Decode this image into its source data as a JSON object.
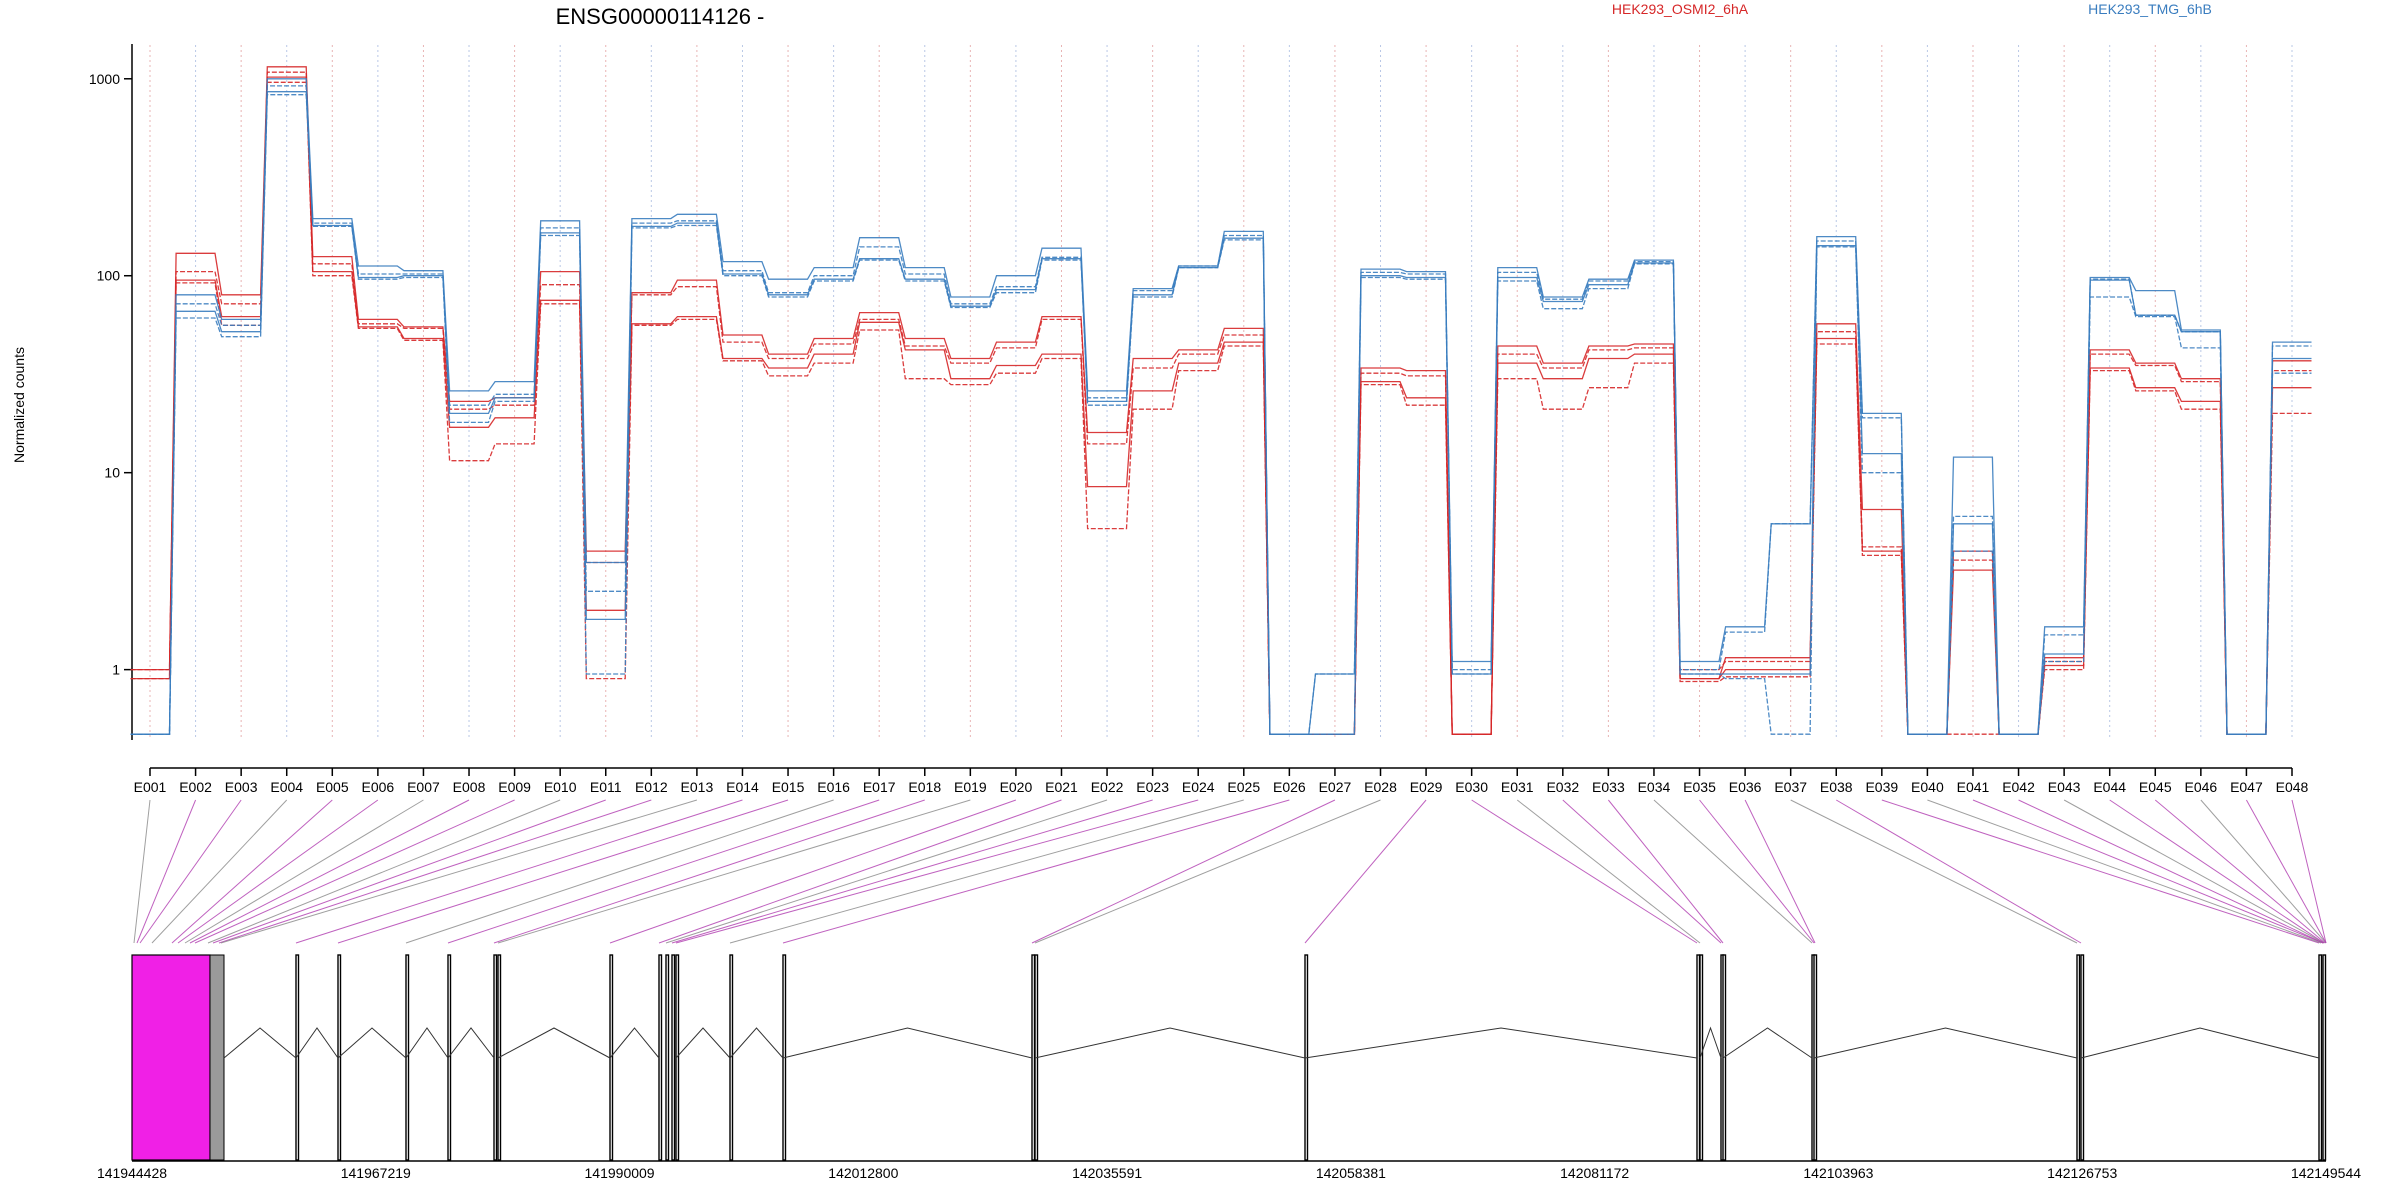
{
  "chart_data": {
    "type": "line",
    "title": "ENSG00000114126 -",
    "ylabel": "Normalized counts",
    "xlabel": "",
    "yscale": "log",
    "ylim": [
      0.4,
      1400
    ],
    "yticks": [
      1,
      10,
      100,
      1000
    ],
    "ytick_labels": [
      "1",
      "10",
      "100",
      "1000"
    ],
    "grid": "vertical dotted lines at each exon",
    "legend": [
      {
        "name": "HEK293_OSMI2_6hA",
        "color": "#d62728"
      },
      {
        "name": "HEK293_TMG_6hB",
        "color": "#3a7dbf"
      }
    ],
    "categories": [
      "E001",
      "E002",
      "E003",
      "E004",
      "E005",
      "E006",
      "E007",
      "E008",
      "E009",
      "E010",
      "E011",
      "E012",
      "E013",
      "E014",
      "E015",
      "E016",
      "E017",
      "E018",
      "E019",
      "E020",
      "E021",
      "E022",
      "E023",
      "E024",
      "E025",
      "E026",
      "E027",
      "E028",
      "E029",
      "E030",
      "E031",
      "E032",
      "E033",
      "E034",
      "E035",
      "E036",
      "E037",
      "E038",
      "E039",
      "E040",
      "E041",
      "E042",
      "E043",
      "E044",
      "E045",
      "E046",
      "E047",
      "E048"
    ],
    "series": [
      {
        "group": "HEK293_OSMI2_6hA",
        "color": "#d62728",
        "values": [
          1.0,
          130,
          80,
          1150,
          125,
          60,
          55,
          23,
          24,
          105,
          4,
          82,
          95,
          50,
          40,
          48,
          65,
          48,
          38,
          46,
          62,
          16,
          38,
          42,
          54,
          0.47,
          0.47,
          34,
          33,
          0.47,
          44,
          36,
          44,
          45,
          0.9,
          1.15,
          1.15,
          57,
          6.5,
          0.47,
          4,
          0.47,
          1.15,
          42,
          36,
          30,
          0.47,
          37
        ]
      },
      {
        "group": "HEK293_OSMI2_6hA",
        "color": "#d62728",
        "values": [
          1.0,
          105,
          72,
          1080,
          115,
          57,
          54,
          21,
          22,
          90,
          3.5,
          80,
          88,
          46,
          38,
          45,
          60,
          44,
          36,
          43,
          60,
          14,
          34,
          40,
          50,
          0.47,
          0.47,
          32,
          31,
          0.47,
          40,
          34,
          42,
          43,
          1.0,
          1.1,
          1.1,
          52,
          4.2,
          0.47,
          3.6,
          0.47,
          1.1,
          40,
          35,
          29,
          0.47,
          33
        ]
      },
      {
        "group": "HEK293_OSMI2_6hA",
        "color": "#d62728",
        "values": [
          0.9,
          95,
          62,
          1020,
          105,
          55,
          48,
          17,
          19,
          75,
          2.0,
          57,
          62,
          38,
          34,
          40,
          58,
          42,
          30,
          35,
          40,
          8.5,
          26,
          36,
          46,
          0.47,
          0.47,
          29,
          24,
          0.47,
          36,
          30,
          38,
          40,
          0.9,
          1.0,
          1.0,
          48,
          4.0,
          0.47,
          3.2,
          0.47,
          1.05,
          34,
          27,
          23,
          0.47,
          27
        ]
      },
      {
        "group": "HEK293_OSMI2_6hA",
        "color": "#d62728",
        "values": [
          0.9,
          92,
          56,
          960,
          100,
          54,
          47,
          11.5,
          14,
          72,
          0.9,
          56,
          60,
          37,
          31,
          36,
          53,
          30,
          28,
          32,
          38,
          5.2,
          21,
          33,
          44,
          0.47,
          0.47,
          28,
          22,
          0.47,
          30,
          21,
          27,
          36,
          0.87,
          0.92,
          0.92,
          45,
          3.8,
          0.47,
          0.47,
          0.47,
          1.0,
          33,
          26,
          21,
          0.47,
          20
        ]
      },
      {
        "group": "HEK293_TMG_6hB",
        "color": "#3a7dbf",
        "values": [
          0.47,
          80,
          60,
          1000,
          195,
          112,
          106,
          26,
          29,
          190,
          3.5,
          195,
          205,
          118,
          96,
          110,
          156,
          110,
          78,
          100,
          138,
          26,
          86,
          112,
          168,
          0.47,
          0.95,
          108,
          105,
          1.1,
          110,
          78,
          96,
          120,
          1.1,
          1.65,
          5.5,
          158,
          20,
          0.47,
          12,
          0.47,
          1.65,
          98,
          84,
          53,
          0.47,
          46
        ]
      },
      {
        "group": "HEK293_TMG_6hB",
        "color": "#3a7dbf",
        "values": [
          0.47,
          72,
          56,
          920,
          185,
          102,
          102,
          22,
          25,
          175,
          2.5,
          185,
          190,
          106,
          82,
          100,
          140,
          102,
          72,
          88,
          124,
          24,
          84,
          112,
          160,
          0.47,
          0.95,
          104,
          102,
          1.0,
          104,
          76,
          94,
          118,
          1.0,
          1.55,
          5.5,
          150,
          19,
          0.47,
          6,
          0.47,
          1.5,
          96,
          63,
          52,
          0.47,
          44
        ]
      },
      {
        "group": "HEK293_TMG_6hB",
        "color": "#3a7dbf",
        "values": [
          0.47,
          66,
          52,
          860,
          180,
          98,
          100,
          20,
          24,
          165,
          1.8,
          178,
          185,
          102,
          80,
          96,
          122,
          96,
          70,
          85,
          122,
          23,
          80,
          110,
          155,
          0.47,
          0.47,
          100,
          98,
          0.95,
          98,
          74,
          90,
          116,
          0.95,
          0.95,
          0.95,
          142,
          12.5,
          0.47,
          5.5,
          0.47,
          1.2,
          95,
          63,
          52,
          0.47,
          38
        ]
      },
      {
        "group": "HEK293_TMG_6hB",
        "color": "#3a7dbf",
        "values": [
          0.47,
          61,
          49,
          830,
          178,
          96,
          98,
          18,
          23,
          160,
          0.95,
          175,
          180,
          100,
          78,
          94,
          120,
          94,
          69,
          82,
          120,
          22,
          78,
          110,
          152,
          0.47,
          0.47,
          98,
          96,
          0.95,
          94,
          68,
          86,
          115,
          0.95,
          0.9,
          0.47,
          140,
          10,
          0.47,
          4,
          0.47,
          1.1,
          78,
          62,
          43,
          0.47,
          32
        ]
      }
    ],
    "coordinate_labels": [
      "141944428",
      "141967219",
      "141990009",
      "142012800",
      "142035591",
      "142058381",
      "142081172",
      "142103963",
      "142126753",
      "142149544"
    ]
  }
}
